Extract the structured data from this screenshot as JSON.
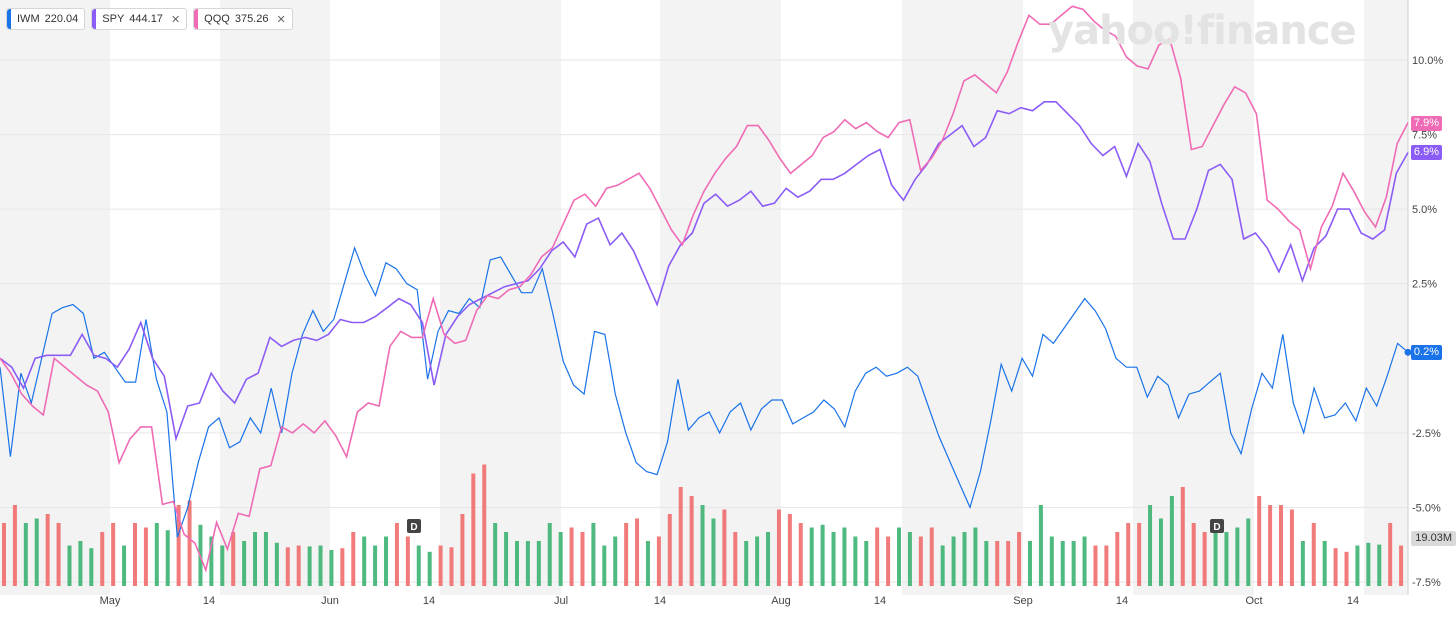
{
  "legend": [
    {
      "symbol": "IWM",
      "value": "220.04",
      "color": "#1a73e8",
      "closable": false
    },
    {
      "symbol": "SPY",
      "value": "444.17",
      "color": "#8b5cf6",
      "closable": true
    },
    {
      "symbol": "QQQ",
      "value": "375.26",
      "color": "#f06bb5",
      "closable": true
    }
  ],
  "watermark": "yahoo!finance",
  "volume_label": "19.03M",
  "dividend_marker": "D",
  "chart_data": {
    "type": "line",
    "title": "",
    "xlabel": "",
    "ylabel": "",
    "ylim": [
      -7.5,
      12
    ],
    "yticks": [
      "10.0%",
      "7.5%",
      "5.0%",
      "2.5%",
      "-2.5%",
      "-5.0%",
      "-7.5%"
    ],
    "ytick_values": [
      10,
      7.5,
      5,
      2.5,
      -2.5,
      -5,
      -7.5
    ],
    "xticks": [
      "May",
      "14",
      "Jun",
      "14",
      "Jul",
      "14",
      "Aug",
      "14",
      "Sep",
      "14",
      "Oct",
      "14"
    ],
    "xtick_days": [
      10,
      19,
      30,
      39,
      51,
      60,
      71,
      80,
      93,
      102,
      114,
      123
    ],
    "total_days": 128,
    "grid": true,
    "end_labels": [
      {
        "text": "7.9%",
        "series": "QQQ",
        "value": 7.9,
        "color": "#f06bb5"
      },
      {
        "text": "6.9%",
        "series": "SPY",
        "value": 6.9,
        "color": "#8b5cf6"
      },
      {
        "text": "0.2%",
        "series": "IWM",
        "value": 0.2,
        "color": "#1a73e8"
      }
    ],
    "series": [
      {
        "name": "IWM",
        "color": "#1a73e8",
        "values": [
          -0.3,
          -3.3,
          -0.5,
          -1.5,
          0,
          1.5,
          1.7,
          1.8,
          1.5,
          0,
          0.2,
          -0.3,
          -0.8,
          -0.8,
          1.3,
          -0.7,
          -1.8,
          -6,
          -5,
          -3.5,
          -2.3,
          -2,
          -3,
          -2.8,
          -2,
          -2.5,
          -1,
          -2.5,
          -0.5,
          0.8,
          1.6,
          0.9,
          1.3,
          2.5,
          3.7,
          2.8,
          2.1,
          3.2,
          3,
          2.5,
          2.3,
          -0.7,
          0.9,
          1.6,
          1.5,
          2,
          1.7,
          3.3,
          3.4,
          2.8,
          2.2,
          2.2,
          3,
          1.5,
          -0.1,
          -0.9,
          -1.2,
          0.9,
          0.8,
          -1.2,
          -2.5,
          -3.5,
          -3.8,
          -3.9,
          -2.8,
          -0.7,
          -2.4,
          -2.0,
          -1.8,
          -2.5,
          -1.8,
          -1.5,
          -2.4,
          -1.7,
          -1.4,
          -1.4,
          -2.2,
          -2.0,
          -1.8,
          -1.4,
          -1.7,
          -2.3,
          -1.1,
          -0.5,
          -0.3,
          -0.6,
          -0.5,
          -0.3,
          -0.6,
          -1.6,
          -2.6,
          -3.4,
          -4.2,
          -5,
          -3.8,
          -2.1,
          -0.2,
          -1.1,
          0,
          -0.6,
          0.8,
          0.5,
          1.0,
          1.5,
          2.0,
          1.6,
          1.0,
          0,
          -0.3,
          -0.3,
          -1.3,
          -0.6,
          -0.9,
          -2.0,
          -1.2,
          -1.1,
          -0.8,
          -0.5,
          -2.5,
          -3.2,
          -1.7,
          -0.5,
          -1.0,
          0.8,
          -1.5,
          -2.5,
          -1.0,
          -2.0,
          -1.9,
          -1.5,
          -2.1,
          -1.0,
          -1.6,
          -0.6,
          0.5,
          0.2
        ]
      },
      {
        "name": "SPY",
        "color": "#8b5cf6",
        "values": [
          0,
          -0.3,
          -1,
          0,
          0.1,
          0.1,
          0.1,
          0.8,
          0.1,
          0,
          -0.3,
          0.3,
          1.2,
          0,
          -0.6,
          -2.7,
          -1.6,
          -1.5,
          -0.5,
          -1.1,
          -1.5,
          -0.7,
          -0.5,
          0.7,
          0.4,
          0.6,
          0.7,
          0.6,
          0.8,
          1.3,
          1.2,
          1.2,
          1.4,
          1.7,
          2.0,
          1.8,
          1.2,
          -0.9,
          0.8,
          1.4,
          1.8,
          2.0,
          2.2,
          2.4,
          2.5,
          2.6,
          3.0,
          3.6,
          3.9,
          3.4,
          4.5,
          4.7,
          3.8,
          4.2,
          3.6,
          2.7,
          1.8,
          3.1,
          3.8,
          4.2,
          5.2,
          5.5,
          5.1,
          5.3,
          5.6,
          5.1,
          5.2,
          5.7,
          5.4,
          5.6,
          6.0,
          6.0,
          6.2,
          6.5,
          6.8,
          7.0,
          5.8,
          5.3,
          6.0,
          6.5,
          7.2,
          7.5,
          7.8,
          7.1,
          7.4,
          8.3,
          8.2,
          8.4,
          8.3,
          8.6,
          8.6,
          8.2,
          7.8,
          7.2,
          6.8,
          7.1,
          6.1,
          7.2,
          6.6,
          5.2,
          4.0,
          4.0,
          5.0,
          6.3,
          6.5,
          6.0,
          4.0,
          4.2,
          3.7,
          2.9,
          3.8,
          2.6,
          3.7,
          4.1,
          5.0,
          5.0,
          4.2,
          4.0,
          4.3,
          6.2,
          6.9
        ]
      },
      {
        "name": "QQQ",
        "color": "#f06bb5",
        "values": [
          0,
          -0.5,
          -1.2,
          -1.6,
          -1.9,
          0,
          -0.3,
          -0.6,
          -0.9,
          -1.1,
          -1.8,
          -3.5,
          -2.7,
          -2.3,
          -2.3,
          -4.9,
          -4.8,
          -5.9,
          -6.2,
          -7.1,
          -5.5,
          -6.4,
          -5.2,
          -5.3,
          -3.7,
          -3.6,
          -2.3,
          -2.5,
          -2.2,
          -2.5,
          -2.1,
          -2.6,
          -3.3,
          -1.8,
          -1.5,
          -1.6,
          0.4,
          0.9,
          0.7,
          0.7,
          2.0,
          0.8,
          0.5,
          0.6,
          1.6,
          2.1,
          2.0,
          2.3,
          2.4,
          2.8,
          3.4,
          3.7,
          4.5,
          5.3,
          5.5,
          5.1,
          5.7,
          5.8,
          6.0,
          6.2,
          5.7,
          5.0,
          4.3,
          3.8,
          4.8,
          5.6,
          6.2,
          6.7,
          7.1,
          7.8,
          7.8,
          7.3,
          6.7,
          6.2,
          6.5,
          6.8,
          7.4,
          7.6,
          8.0,
          7.7,
          7.9,
          7.6,
          7.4,
          7.9,
          8.0,
          6.3,
          6.7,
          7.3,
          8.2,
          9.3,
          9.5,
          9.2,
          8.9,
          9.6,
          10.6,
          11.5,
          11.2,
          11.2,
          11.5,
          11.8,
          11.7,
          11.3,
          11.0,
          10.8,
          10.1,
          9.8,
          9.7,
          10.5,
          10.7,
          9.4,
          7.0,
          7.1,
          7.8,
          8.5,
          9.1,
          8.9,
          8.2,
          5.3,
          5.0,
          4.6,
          4.3,
          3.0,
          4.4,
          5.1,
          6.2,
          5.6,
          4.9,
          4.4,
          5.4,
          7.2,
          7.9
        ]
      }
    ],
    "volume_series": [
      {
        "value": 7,
        "color": "#f06b6b"
      },
      {
        "value": 9,
        "color": "#f06b6b"
      },
      {
        "value": 7,
        "color": "#3cb371"
      },
      {
        "value": 7.5,
        "color": "#3cb371"
      },
      {
        "value": 8,
        "color": "#f06b6b"
      },
      {
        "value": 7,
        "color": "#f06b6b"
      },
      {
        "value": 4.5,
        "color": "#3cb371"
      },
      {
        "value": 5,
        "color": "#3cb371"
      },
      {
        "value": 4.2,
        "color": "#3cb371"
      },
      {
        "value": 6,
        "color": "#f06b6b"
      },
      {
        "value": 7,
        "color": "#f06b6b"
      },
      {
        "value": 4.5,
        "color": "#3cb371"
      },
      {
        "value": 7,
        "color": "#f06b6b"
      },
      {
        "value": 6.5,
        "color": "#f06b6b"
      },
      {
        "value": 7,
        "color": "#3cb371"
      },
      {
        "value": 6.2,
        "color": "#3cb371"
      },
      {
        "value": 9,
        "color": "#f06b6b"
      },
      {
        "value": 9.5,
        "color": "#f06b6b"
      },
      {
        "value": 6.8,
        "color": "#3cb371"
      },
      {
        "value": 5.5,
        "color": "#3cb371"
      },
      {
        "value": 4.5,
        "color": "#3cb371"
      },
      {
        "value": 6,
        "color": "#f06b6b"
      },
      {
        "value": 5,
        "color": "#3cb371"
      },
      {
        "value": 6,
        "color": "#3cb371"
      },
      {
        "value": 6,
        "color": "#3cb371"
      },
      {
        "value": 4.8,
        "color": "#3cb371"
      },
      {
        "value": 4.3,
        "color": "#f06b6b"
      },
      {
        "value": 4.5,
        "color": "#f06b6b"
      },
      {
        "value": 4.4,
        "color": "#3cb371"
      },
      {
        "value": 4.5,
        "color": "#3cb371"
      },
      {
        "value": 4,
        "color": "#3cb371"
      },
      {
        "value": 4.2,
        "color": "#f06b6b"
      },
      {
        "value": 6,
        "color": "#f06b6b"
      },
      {
        "value": 5.5,
        "color": "#3cb371"
      },
      {
        "value": 4.5,
        "color": "#3cb371"
      },
      {
        "value": 5.5,
        "color": "#3cb371"
      },
      {
        "value": 7,
        "color": "#f06b6b"
      },
      {
        "value": 5.5,
        "color": "#f06b6b"
      },
      {
        "value": 4.5,
        "color": "#3cb371"
      },
      {
        "value": 3.8,
        "color": "#3cb371"
      },
      {
        "value": 4.5,
        "color": "#f06b6b"
      },
      {
        "value": 4.3,
        "color": "#f06b6b"
      },
      {
        "value": 8,
        "color": "#f06b6b"
      },
      {
        "value": 12.5,
        "color": "#f06b6b"
      },
      {
        "value": 13.5,
        "color": "#f06b6b"
      },
      {
        "value": 7,
        "color": "#3cb371"
      },
      {
        "value": 6,
        "color": "#3cb371"
      },
      {
        "value": 5,
        "color": "#3cb371"
      },
      {
        "value": 5,
        "color": "#3cb371"
      },
      {
        "value": 5,
        "color": "#3cb371"
      },
      {
        "value": 7,
        "color": "#3cb371"
      },
      {
        "value": 6,
        "color": "#3cb371"
      },
      {
        "value": 6.5,
        "color": "#f06b6b"
      },
      {
        "value": 6,
        "color": "#f06b6b"
      },
      {
        "value": 7,
        "color": "#3cb371"
      },
      {
        "value": 4.5,
        "color": "#3cb371"
      },
      {
        "value": 5.5,
        "color": "#3cb371"
      },
      {
        "value": 7,
        "color": "#f06b6b"
      },
      {
        "value": 7.5,
        "color": "#f06b6b"
      },
      {
        "value": 5,
        "color": "#3cb371"
      },
      {
        "value": 5.5,
        "color": "#f06b6b"
      },
      {
        "value": 8,
        "color": "#f06b6b"
      },
      {
        "value": 11,
        "color": "#f06b6b"
      },
      {
        "value": 10,
        "color": "#f06b6b"
      },
      {
        "value": 9,
        "color": "#3cb371"
      },
      {
        "value": 7.5,
        "color": "#3cb371"
      },
      {
        "value": 8.5,
        "color": "#f06b6b"
      },
      {
        "value": 6,
        "color": "#f06b6b"
      },
      {
        "value": 5,
        "color": "#3cb371"
      },
      {
        "value": 5.5,
        "color": "#3cb371"
      },
      {
        "value": 6,
        "color": "#3cb371"
      },
      {
        "value": 8.5,
        "color": "#f06b6b"
      },
      {
        "value": 8,
        "color": "#f06b6b"
      },
      {
        "value": 7,
        "color": "#f06b6b"
      },
      {
        "value": 6.5,
        "color": "#3cb371"
      },
      {
        "value": 6.8,
        "color": "#3cb371"
      },
      {
        "value": 6,
        "color": "#3cb371"
      },
      {
        "value": 6.5,
        "color": "#3cb371"
      },
      {
        "value": 5.5,
        "color": "#3cb371"
      },
      {
        "value": 5,
        "color": "#3cb371"
      },
      {
        "value": 6.5,
        "color": "#f06b6b"
      },
      {
        "value": 5.5,
        "color": "#f06b6b"
      },
      {
        "value": 6.5,
        "color": "#3cb371"
      },
      {
        "value": 6,
        "color": "#3cb371"
      },
      {
        "value": 5.5,
        "color": "#f06b6b"
      },
      {
        "value": 6.5,
        "color": "#f06b6b"
      },
      {
        "value": 4.5,
        "color": "#3cb371"
      },
      {
        "value": 5.5,
        "color": "#3cb371"
      },
      {
        "value": 6,
        "color": "#3cb371"
      },
      {
        "value": 6.5,
        "color": "#3cb371"
      },
      {
        "value": 5,
        "color": "#3cb371"
      },
      {
        "value": 5,
        "color": "#f06b6b"
      },
      {
        "value": 5,
        "color": "#f06b6b"
      },
      {
        "value": 6,
        "color": "#f06b6b"
      },
      {
        "value": 5,
        "color": "#3cb371"
      },
      {
        "value": 9,
        "color": "#3cb371"
      },
      {
        "value": 5.5,
        "color": "#3cb371"
      },
      {
        "value": 5,
        "color": "#3cb371"
      },
      {
        "value": 5,
        "color": "#3cb371"
      },
      {
        "value": 5.5,
        "color": "#3cb371"
      },
      {
        "value": 4.5,
        "color": "#f06b6b"
      },
      {
        "value": 4.5,
        "color": "#f06b6b"
      },
      {
        "value": 6,
        "color": "#f06b6b"
      },
      {
        "value": 7,
        "color": "#f06b6b"
      },
      {
        "value": 7,
        "color": "#f06b6b"
      },
      {
        "value": 9,
        "color": "#3cb371"
      },
      {
        "value": 7.5,
        "color": "#3cb371"
      },
      {
        "value": 10,
        "color": "#3cb371"
      },
      {
        "value": 11,
        "color": "#f06b6b"
      },
      {
        "value": 7,
        "color": "#f06b6b"
      },
      {
        "value": 6,
        "color": "#f06b6b"
      },
      {
        "value": 7,
        "color": "#3cb371"
      },
      {
        "value": 6,
        "color": "#3cb371"
      },
      {
        "value": 6.5,
        "color": "#3cb371"
      },
      {
        "value": 7.5,
        "color": "#3cb371"
      },
      {
        "value": 10,
        "color": "#f06b6b"
      },
      {
        "value": 9,
        "color": "#f06b6b"
      },
      {
        "value": 9,
        "color": "#f06b6b"
      },
      {
        "value": 8.5,
        "color": "#f06b6b"
      },
      {
        "value": 5,
        "color": "#3cb371"
      },
      {
        "value": 7,
        "color": "#f06b6b"
      },
      {
        "value": 5,
        "color": "#3cb371"
      },
      {
        "value": 4.2,
        "color": "#f06b6b"
      },
      {
        "value": 3.8,
        "color": "#f06b6b"
      },
      {
        "value": 4.5,
        "color": "#3cb371"
      },
      {
        "value": 4.8,
        "color": "#3cb371"
      },
      {
        "value": 4.6,
        "color": "#3cb371"
      },
      {
        "value": 7,
        "color": "#f06b6b"
      },
      {
        "value": 4.5,
        "color": "#f06b6b"
      }
    ]
  }
}
